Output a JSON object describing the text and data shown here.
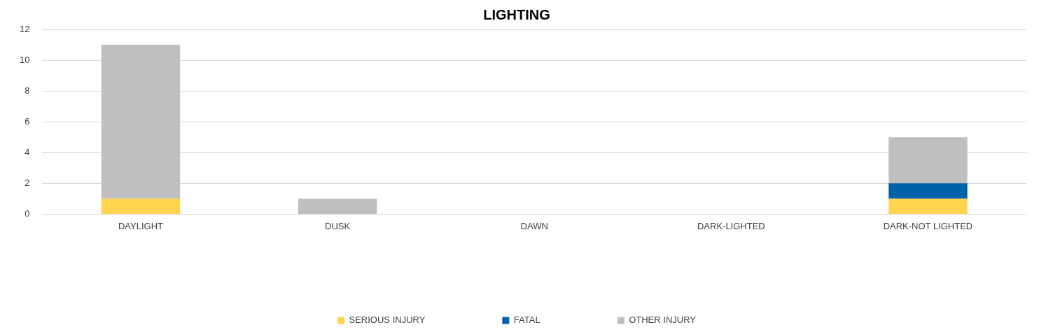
{
  "chart_data": {
    "type": "bar",
    "title": "LIGHTING",
    "stacked": true,
    "categories": [
      "DAYLIGHT",
      "DUSK",
      "DAWN",
      "DARK-LIGHTED",
      "DARK-NOT LIGHTED"
    ],
    "series": [
      {
        "name": "SERIOUS INJURY",
        "color": "#ffd44f",
        "values": [
          1,
          0,
          0,
          0,
          1
        ]
      },
      {
        "name": "FATAL",
        "color": "#0060a8",
        "values": [
          0,
          0,
          0,
          0,
          1
        ]
      },
      {
        "name": "OTHER INJURY",
        "color": "#bfbfbf",
        "values": [
          10,
          1,
          0,
          0,
          3
        ]
      }
    ],
    "ylim": [
      0,
      12
    ],
    "yticks": [
      0,
      2,
      4,
      6,
      8,
      10,
      12
    ],
    "grid": "y",
    "legend": "bottom"
  }
}
